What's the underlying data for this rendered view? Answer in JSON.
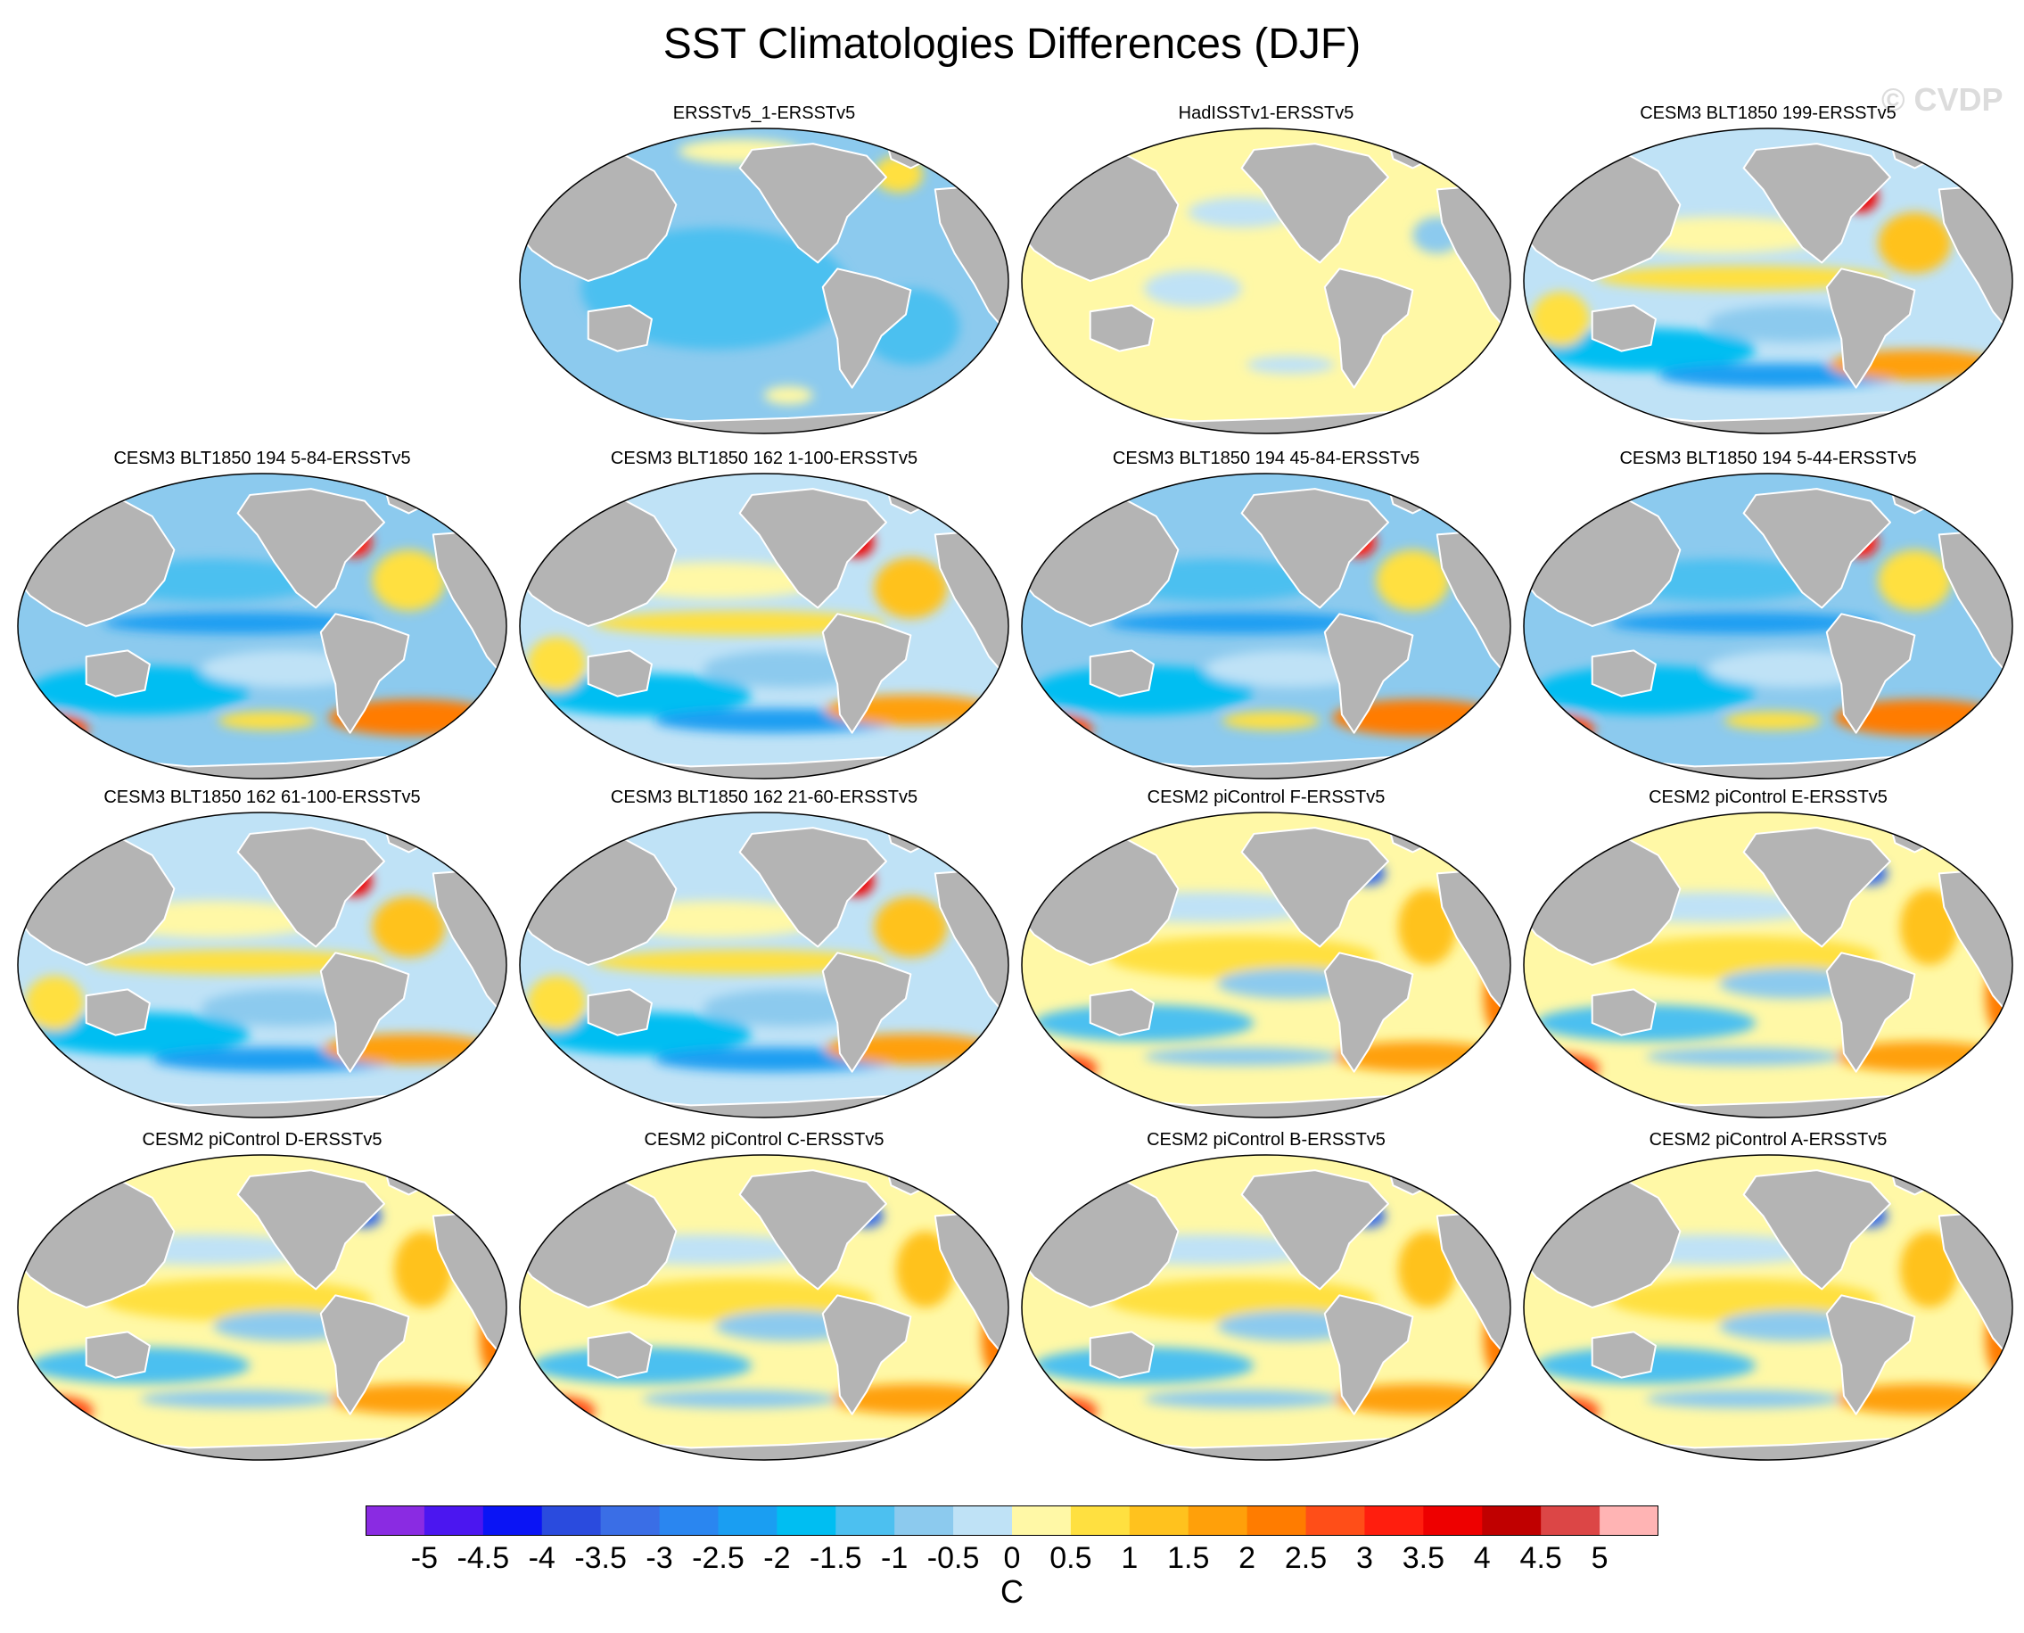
{
  "figure": {
    "title": "SST Climatologies Differences (DJF)",
    "watermark": "© CVDP",
    "units": "C",
    "ocean_zero_color": "#fffaa0",
    "land_color": "#b4b4b4",
    "coast_color": "#ffffff"
  },
  "panels": [
    {
      "title": "ERSSTv5_1-ERSSTv5",
      "pattern": "uniform-cool"
    },
    {
      "title": "HadISSTv1-ERSSTv5",
      "pattern": "uniform-warm"
    },
    {
      "title": "CESM3 BLT1850 199-ERSSTv5",
      "pattern": "cesm3-warm"
    },
    {
      "title": "CESM3 BLT1850 194 5-84-ERSSTv5",
      "pattern": "cesm3-cool"
    },
    {
      "title": "CESM3 BLT1850 162 1-100-ERSSTv5",
      "pattern": "cesm3-warm"
    },
    {
      "title": "CESM3 BLT1850 194 45-84-ERSSTv5",
      "pattern": "cesm3-cool"
    },
    {
      "title": "CESM3 BLT1850 194 5-44-ERSSTv5",
      "pattern": "cesm3-cool"
    },
    {
      "title": "CESM3 BLT1850 162 61-100-ERSSTv5",
      "pattern": "cesm3-warm"
    },
    {
      "title": "CESM3 BLT1850 162 21-60-ERSSTv5",
      "pattern": "cesm3-warm"
    },
    {
      "title": "CESM2 piControl F-ERSSTv5",
      "pattern": "cesm2"
    },
    {
      "title": "CESM2 piControl E-ERSSTv5",
      "pattern": "cesm2"
    },
    {
      "title": "CESM2 piControl D-ERSSTv5",
      "pattern": "cesm2"
    },
    {
      "title": "CESM2 piControl C-ERSSTv5",
      "pattern": "cesm2"
    },
    {
      "title": "CESM2 piControl B-ERSSTv5",
      "pattern": "cesm2"
    },
    {
      "title": "CESM2 piControl A-ERSSTv5",
      "pattern": "cesm2"
    }
  ],
  "colorbar": {
    "ticks": [
      "-5",
      "-4.5",
      "-4",
      "-3.5",
      "-3",
      "-2.5",
      "-2",
      "-1.5",
      "-1",
      "-0.5",
      "0",
      "0.5",
      "1",
      "1.5",
      "2",
      "2.5",
      "3",
      "3.5",
      "4",
      "4.5",
      "5"
    ],
    "colors": [
      "#8a2be2",
      "#4b16f0",
      "#0a14f5",
      "#2a4bde",
      "#3a6ee6",
      "#2a86f0",
      "#1a9ef2",
      "#00bef2",
      "#4cc0f0",
      "#8ccaee",
      "#bfe2f6",
      "#fff8a6",
      "#ffe040",
      "#ffc21e",
      "#ffa00a",
      "#ff7c00",
      "#ff4e18",
      "#ff1e0e",
      "#ee0000",
      "#c00000",
      "#dc4646",
      "#ffb4b4"
    ]
  }
}
